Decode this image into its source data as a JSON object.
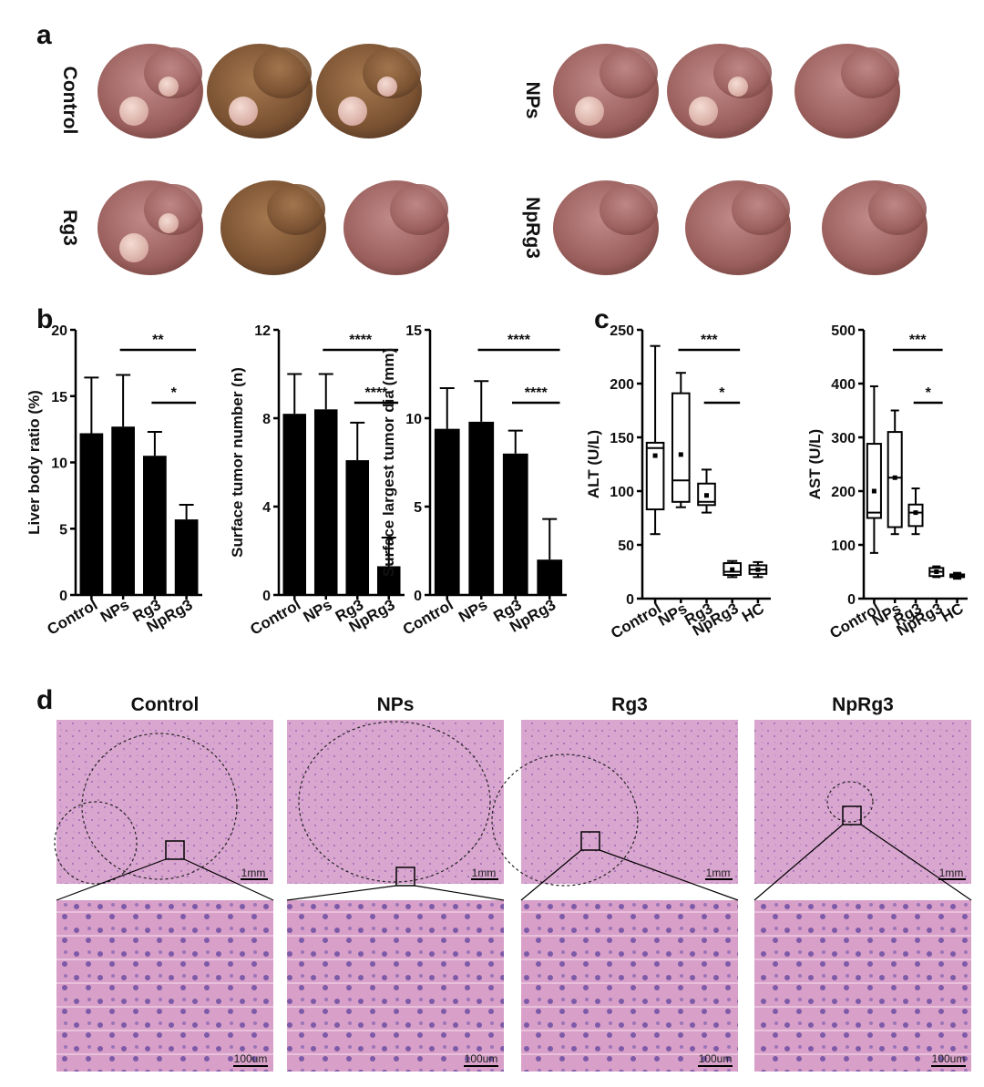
{
  "panel_labels": [
    "a",
    "b",
    "c",
    "d"
  ],
  "photos": {
    "groups": [
      "Control",
      "NPs",
      "Rg3",
      "NpRg3"
    ]
  },
  "chart_data": [
    {
      "type": "bar",
      "ylabel": "Liver body ratio (%)",
      "categories": [
        "Control",
        "NPs",
        "Rg3",
        "NpRg3"
      ],
      "values": [
        12.2,
        12.7,
        10.5,
        5.7
      ],
      "errors": [
        4.2,
        3.9,
        1.8,
        1.1
      ],
      "color": "#000000",
      "ylim": [
        0,
        20
      ],
      "yticks": [
        0,
        5,
        10,
        15,
        20
      ],
      "comparisons": [
        {
          "label": "**",
          "between": [
            "NPs",
            "NpRg3"
          ]
        },
        {
          "label": "*",
          "between": [
            "Rg3",
            "NpRg3"
          ]
        }
      ]
    },
    {
      "type": "bar",
      "ylabel": "Surface tumor number (n)",
      "categories": [
        "Control",
        "NPs",
        "Rg3",
        "NpRg3"
      ],
      "values": [
        8.2,
        8.4,
        6.1,
        1.3
      ],
      "errors": [
        1.8,
        1.6,
        1.7,
        1.3
      ],
      "color": "#000000",
      "ylim": [
        0,
        12
      ],
      "yticks": [
        0,
        4,
        8,
        12
      ],
      "comparisons": [
        {
          "label": "****",
          "between": [
            "NPs",
            "NpRg3"
          ]
        },
        {
          "label": "****",
          "between": [
            "Rg3",
            "NpRg3"
          ]
        }
      ]
    },
    {
      "type": "bar",
      "ylabel": "Surface largest tumor dia (mm)",
      "categories": [
        "Control",
        "NPs",
        "Rg3",
        "NpRg3"
      ],
      "values": [
        9.4,
        9.8,
        8.0,
        2.0
      ],
      "errors": [
        2.3,
        2.3,
        1.3,
        2.3
      ],
      "color": "#000000",
      "ylim": [
        0,
        15
      ],
      "yticks": [
        0,
        5,
        10,
        15
      ],
      "comparisons": [
        {
          "label": "****",
          "between": [
            "NPs",
            "NpRg3"
          ]
        },
        {
          "label": "****",
          "between": [
            "Rg3",
            "NpRg3"
          ]
        }
      ]
    },
    {
      "type": "box",
      "ylabel": "ALT (U/L)",
      "categories": [
        "Control",
        "NPs",
        "Rg3",
        "NpRg3",
        "HC"
      ],
      "min": [
        60,
        85,
        80,
        20,
        20
      ],
      "q1": [
        83,
        90,
        87,
        22,
        23
      ],
      "median": [
        140,
        110,
        90,
        25,
        27
      ],
      "q3": [
        145,
        191,
        107,
        33,
        31
      ],
      "max": [
        235,
        210,
        120,
        35,
        34
      ],
      "mean": [
        133,
        134,
        96,
        27,
        27
      ],
      "ylim": [
        0,
        250
      ],
      "yticks": [
        0,
        50,
        100,
        150,
        200,
        250
      ],
      "comparisons": [
        {
          "label": "***",
          "between": [
            "NPs",
            "NpRg3"
          ]
        },
        {
          "label": "*",
          "between": [
            "Rg3",
            "NpRg3"
          ]
        }
      ]
    },
    {
      "type": "box",
      "ylabel": "AST (U/L)",
      "categories": [
        "Control",
        "NPs",
        "Rg3",
        "NpRg3",
        "HC"
      ],
      "min": [
        85,
        120,
        120,
        40,
        37
      ],
      "q1": [
        150,
        133,
        135,
        42,
        40
      ],
      "median": [
        160,
        225,
        160,
        50,
        42
      ],
      "q3": [
        288,
        310,
        175,
        57,
        45
      ],
      "max": [
        395,
        350,
        205,
        60,
        48
      ],
      "mean": [
        200,
        225,
        160,
        50,
        42
      ],
      "ylim": [
        0,
        500
      ],
      "yticks": [
        0,
        100,
        200,
        300,
        400,
        500
      ],
      "comparisons": [
        {
          "label": "***",
          "between": [
            "NPs",
            "NpRg3"
          ]
        },
        {
          "label": "*",
          "between": [
            "Rg3",
            "NpRg3"
          ]
        }
      ]
    }
  ],
  "histology": {
    "groups": [
      "Control",
      "NPs",
      "Rg3",
      "NpRg3"
    ],
    "scale_bars": [
      "1mm",
      "100um"
    ]
  }
}
